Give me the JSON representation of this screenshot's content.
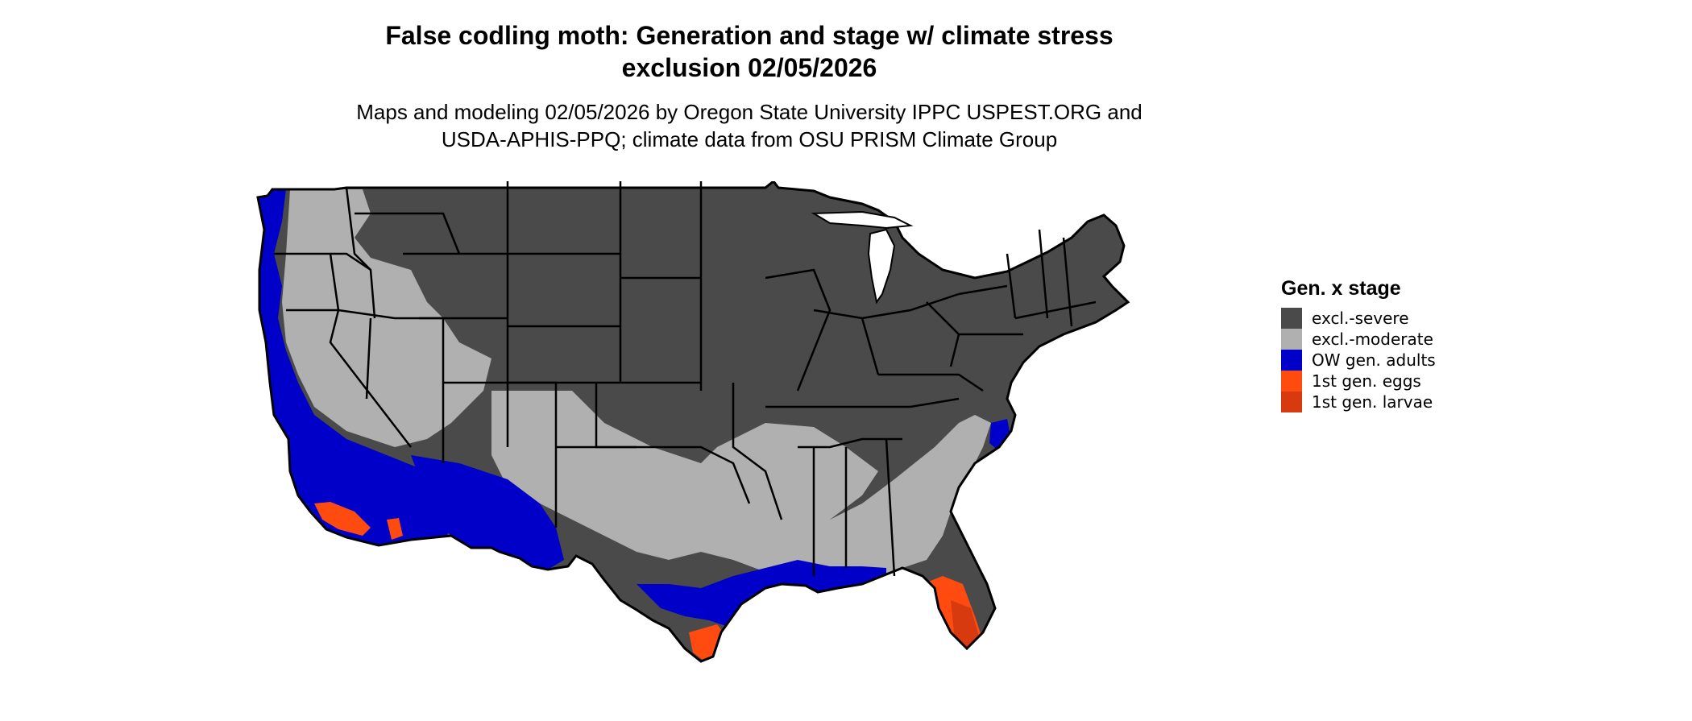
{
  "map": {
    "title_line1": "False codling moth: Generation and stage w/ climate stress",
    "title_line2": "exclusion 02/05/2026",
    "subtitle_line1": "Maps and modeling 02/05/2026 by Oregon State University IPPC USPEST.ORG and",
    "subtitle_line2": "USDA-APHIS-PPQ; climate data from OSU PRISM Climate Group",
    "region": "Contiguous United States",
    "colors": {
      "excl_severe": "#4a4a4a",
      "excl_moderate": "#b0b0b0",
      "ow_gen_adults": "#0000c8",
      "gen1_eggs": "#ff4a10",
      "gen1_larvae": "#d83a10",
      "border": "#000000"
    }
  },
  "legend": {
    "title": "Gen. x stage",
    "items": [
      {
        "label": "excl.-severe",
        "color": "#4a4a4a"
      },
      {
        "label": "excl.-moderate",
        "color": "#b0b0b0"
      },
      {
        "label": "OW gen. adults",
        "color": "#0000c8"
      },
      {
        "label": "1st gen. eggs",
        "color": "#ff4a10"
      },
      {
        "label": "1st gen. larvae",
        "color": "#d83a10"
      }
    ]
  }
}
